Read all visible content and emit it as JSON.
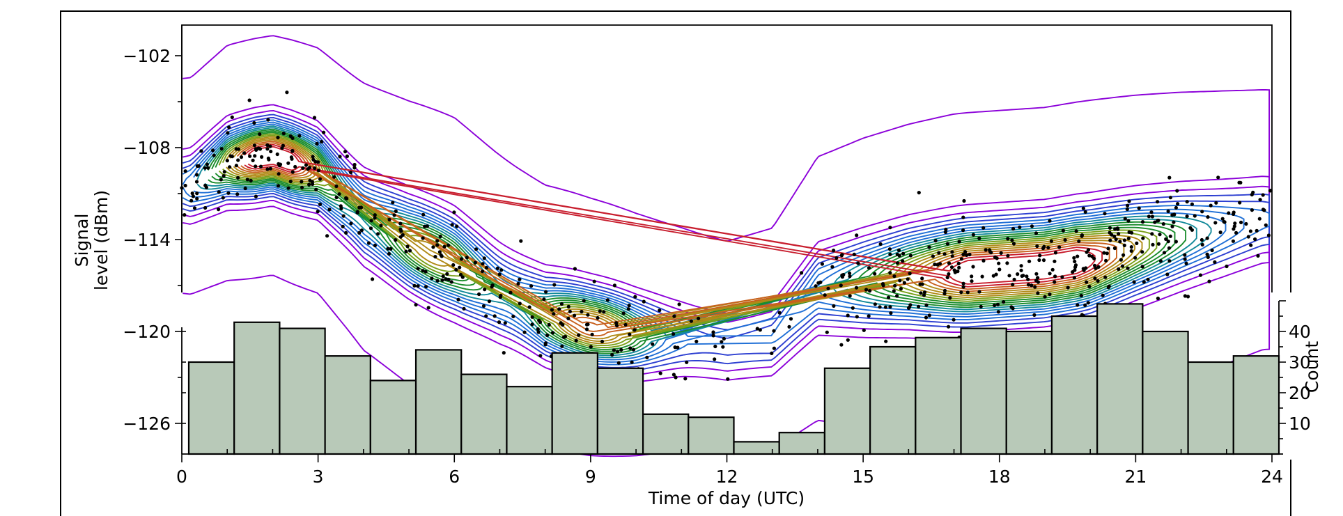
{
  "chart_data": [
    {
      "type": "scatter",
      "variant": "density-contour with scatter points",
      "title": "",
      "xlabel": "Time of day (UTC)",
      "ylabel": "Signal level (dBm)",
      "ylabel_lines": [
        "Signal",
        "level (dBm)"
      ],
      "xlim": [
        0,
        24
      ],
      "ylim": [
        -128,
        -100
      ],
      "x_ticks": [
        0,
        3,
        6,
        9,
        12,
        15,
        18,
        21,
        24
      ],
      "y_ticks": [
        -126,
        -120,
        -114,
        -108,
        -102
      ],
      "y_tick_labels": [
        "−126",
        "−120",
        "−114",
        "−108",
        "−102"
      ],
      "grid": false,
      "contour_colormap": [
        "#8b00d9",
        "#2d3fd1",
        "#1f6fd6",
        "#138a9a",
        "#1a8c2c",
        "#7aa01a",
        "#b08a17",
        "#c8601e",
        "#c81e2e"
      ],
      "density_peaks": [
        {
          "x": 2.0,
          "y": -108.5
        },
        {
          "x": 5.5,
          "y": -114.5
        },
        {
          "x": 9.0,
          "y": -119.5
        },
        {
          "x": 18.5,
          "y": -116.0
        }
      ],
      "ridge": {
        "x": [
          0.2,
          1,
          2,
          3,
          4,
          5,
          6,
          7,
          8,
          9,
          10,
          11,
          12,
          13,
          14,
          15,
          16,
          17,
          18,
          19,
          20,
          21,
          22,
          23,
          23.8
        ],
        "y": [
          -110.5,
          -109,
          -108.5,
          -109.5,
          -112.5,
          -114.2,
          -115.6,
          -117.5,
          -119,
          -119.7,
          -120.2,
          -120.5,
          -121,
          -120.5,
          -117.2,
          -116.8,
          -116.4,
          -116.2,
          -116,
          -115.8,
          -115.3,
          -114.5,
          -113.8,
          -113.2,
          -112.7
        ],
        "spread": [
          2.3,
          2.4,
          2.4,
          2.5,
          2.8,
          2.9,
          3.0,
          2.9,
          2.7,
          2.6,
          2.5,
          2.4,
          2.3,
          2.4,
          2.8,
          3.0,
          3.1,
          3.2,
          3.2,
          3.2,
          3.2,
          3.1,
          3.0,
          2.9,
          2.8
        ]
      }
    },
    {
      "type": "bar",
      "variant": "histogram",
      "xlabel": "Time of day (UTC)",
      "ylabel": "Count",
      "x": [
        0.5,
        1.5,
        2.5,
        3.5,
        4.5,
        5.5,
        6.5,
        7.5,
        8.5,
        9.5,
        10.5,
        11.5,
        12.5,
        13.5,
        14.5,
        15.5,
        16.5,
        17.5,
        18.5,
        19.5,
        20.5,
        21.5,
        22.5,
        23.5
      ],
      "values": [
        30,
        43,
        41,
        32,
        24,
        34,
        26,
        22,
        33,
        28,
        13,
        12,
        4,
        7,
        28,
        35,
        38,
        41,
        40,
        45,
        49,
        40,
        30,
        32
      ],
      "ylim": [
        0,
        50
      ],
      "y_ticks": [
        10,
        20,
        30,
        40
      ],
      "y_tick_labels": [
        "10",
        "20",
        "30",
        "40"
      ],
      "grid": false
    }
  ]
}
